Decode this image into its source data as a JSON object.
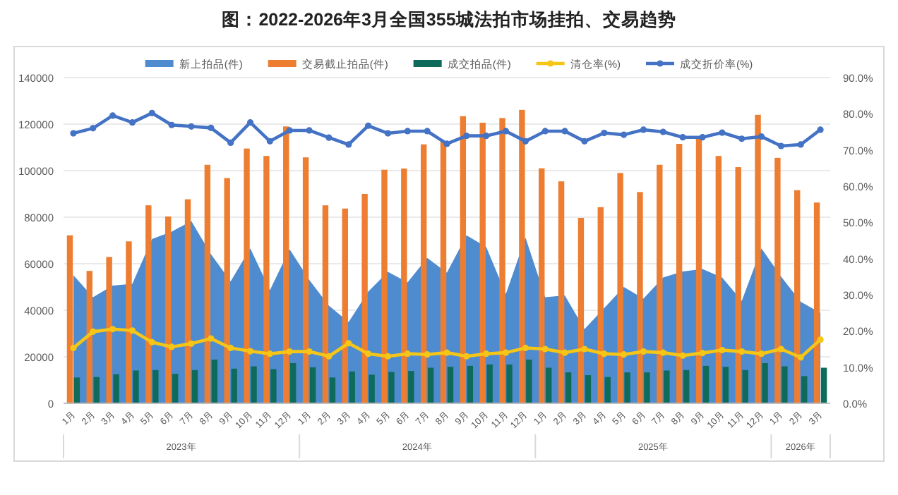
{
  "chart_data": {
    "type": "bar",
    "title": "图：2022-2026年3月全国355城法拍市场挂拍、交易趋势",
    "categories": [
      "1月",
      "2月",
      "3月",
      "4月",
      "5月",
      "6月",
      "7月",
      "8月",
      "9月",
      "10月",
      "11月",
      "12月",
      "1月",
      "2月",
      "3月",
      "4月",
      "5月",
      "6月",
      "7月",
      "8月",
      "9月",
      "10月",
      "11月",
      "12月",
      "1月",
      "2月",
      "3月",
      "4月",
      "5月",
      "6月",
      "7月",
      "8月",
      "9月",
      "10月",
      "11月",
      "12月",
      "1月",
      "2月",
      "3月"
    ],
    "series": [
      {
        "name": "新上拍品(件)",
        "type": "area",
        "color": "#4f8bcf",
        "values": [
          55100,
          45600,
          50600,
          51400,
          70600,
          73800,
          78300,
          64100,
          52400,
          66600,
          48600,
          66200,
          53000,
          42000,
          34900,
          48000,
          56500,
          52000,
          62500,
          56100,
          72200,
          67200,
          47000,
          71200,
          45600,
          46400,
          31900,
          40900,
          50000,
          45000,
          54100,
          56700,
          57700,
          54100,
          44000,
          66600,
          54500,
          43600,
          38900
        ]
      },
      {
        "name": "交易截止拍品(件)",
        "type": "bar",
        "color": "#ed7d31",
        "values": [
          72200,
          56900,
          62900,
          69600,
          85100,
          80300,
          87700,
          102500,
          96800,
          109500,
          106300,
          119000,
          105700,
          85100,
          83700,
          90000,
          100400,
          100900,
          111300,
          112500,
          123400,
          120600,
          122600,
          126100,
          101000,
          95400,
          79700,
          84300,
          99000,
          90800,
          102500,
          111500,
          114200,
          106300,
          101500,
          124000,
          105500,
          91600,
          86300
        ]
      },
      {
        "name": "成交拍品(件)",
        "type": "bar",
        "color": "#0e6b5c",
        "values": [
          11100,
          11300,
          12500,
          14100,
          14300,
          12700,
          14300,
          18800,
          14900,
          15900,
          14700,
          17300,
          15500,
          11100,
          13700,
          12300,
          13500,
          13900,
          15300,
          15700,
          16100,
          16700,
          16700,
          18800,
          15300,
          13300,
          12100,
          11300,
          13300,
          13300,
          14100,
          14300,
          16100,
          15700,
          14300,
          17300,
          15900,
          11700,
          15300
        ]
      },
      {
        "name": "清仓率(%)",
        "type": "line",
        "axis": "y2",
        "marker": "circle",
        "color": "#f5c518",
        "values": [
          15.3,
          19.8,
          20.5,
          20.1,
          16.9,
          15.6,
          16.5,
          17.9,
          15.3,
          14.4,
          13.7,
          14.3,
          14.3,
          13.0,
          16.6,
          13.7,
          13.0,
          13.7,
          13.5,
          14.0,
          13.0,
          13.7,
          14.0,
          15.3,
          15.0,
          14.0,
          15.0,
          13.7,
          13.5,
          14.3,
          14.0,
          13.2,
          13.9,
          14.7,
          14.3,
          13.7,
          15.0,
          12.7,
          17.6
        ]
      },
      {
        "name": "成交折价率(%)",
        "type": "line",
        "axis": "y2",
        "marker": "circle",
        "color": "#4472c4",
        "values": [
          74.6,
          76.0,
          79.5,
          77.6,
          80.2,
          76.9,
          76.5,
          76.1,
          72.0,
          77.6,
          72.4,
          75.4,
          75.4,
          73.4,
          71.5,
          76.7,
          74.6,
          75.2,
          75.2,
          71.7,
          73.9,
          73.9,
          75.2,
          72.4,
          75.2,
          75.2,
          72.4,
          74.7,
          74.2,
          75.6,
          75.0,
          73.5,
          73.5,
          74.8,
          73.1,
          73.7,
          71.1,
          71.5,
          75.6
        ]
      }
    ],
    "ylim": [
      0,
      140000
    ],
    "yticks": [
      0,
      20000,
      40000,
      60000,
      80000,
      100000,
      120000,
      140000
    ],
    "y2lim": [
      0,
      90
    ],
    "y2ticks": [
      {
        "value": 0,
        "label": "0.0%"
      },
      {
        "value": 10,
        "label": "10.0%"
      },
      {
        "value": 20,
        "label": "20.0%"
      },
      {
        "value": 30,
        "label": "30.0%"
      },
      {
        "value": 40,
        "label": "40.0%"
      },
      {
        "value": 50,
        "label": "50.0%"
      },
      {
        "value": 60,
        "label": "60.0%"
      },
      {
        "value": 70,
        "label": "70.0%"
      },
      {
        "value": 80,
        "label": "80.0%"
      },
      {
        "value": 90,
        "label": "90.0%"
      }
    ],
    "grid": "y",
    "legend": "top",
    "annotations": [
      "2023年",
      "2024年",
      "2025年",
      "2026年"
    ]
  }
}
